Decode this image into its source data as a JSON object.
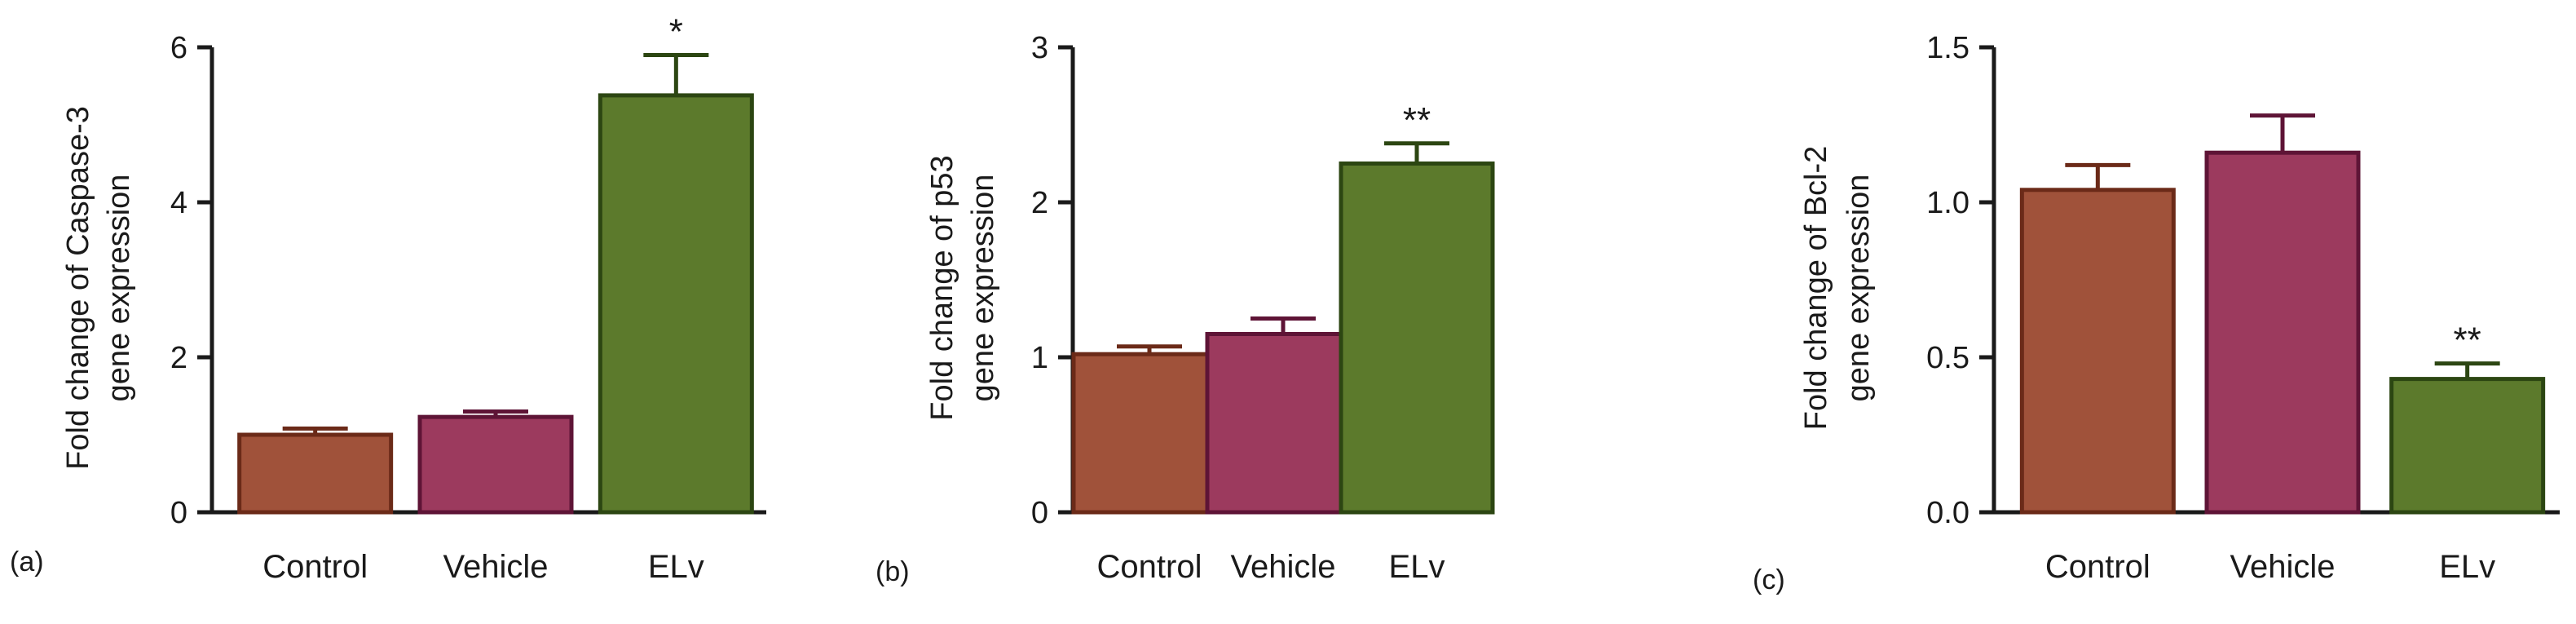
{
  "figure_labels": [
    "(a)",
    "(b)",
    "(c)"
  ],
  "colors": {
    "control_fill": "#A0523A",
    "control_stroke": "#6B2A18",
    "vehicle_fill": "#9C3A5E",
    "vehicle_stroke": "#5E1436",
    "elv_fill": "#5C7A2C",
    "elv_stroke": "#2C4612",
    "axis": "#1a1a1a"
  },
  "chart_data": [
    {
      "type": "bar",
      "panel": "(a)",
      "title": "",
      "ylabel_lines": [
        "Fold change of Caspase-3",
        "gene expression"
      ],
      "xlabel": "",
      "categories": [
        "Control",
        "Vehicle",
        "ELv"
      ],
      "values": [
        1.0,
        1.23,
        5.38
      ],
      "errors": [
        0.08,
        0.07,
        0.52
      ],
      "significance": [
        "",
        "",
        "*"
      ],
      "ylim": [
        0,
        6
      ],
      "yticks": [
        "0",
        "2",
        "4",
        "6"
      ],
      "ytick_values": [
        0,
        2,
        4,
        6
      ]
    },
    {
      "type": "bar",
      "panel": "(b)",
      "title": "",
      "ylabel_lines": [
        "Fold change of p53",
        "gene expression"
      ],
      "xlabel": "",
      "categories": [
        "Control",
        "Vehicle",
        "ELv"
      ],
      "values": [
        1.02,
        1.15,
        2.25
      ],
      "errors": [
        0.05,
        0.1,
        0.13
      ],
      "significance": [
        "",
        "",
        "**"
      ],
      "ylim": [
        0,
        3
      ],
      "yticks": [
        "0",
        "1",
        "2",
        "3"
      ],
      "ytick_values": [
        0,
        1,
        2,
        3
      ]
    },
    {
      "type": "bar",
      "panel": "(c)",
      "title": "",
      "ylabel_lines": [
        "Fold change of Bcl-2",
        "gene expression"
      ],
      "xlabel": "",
      "categories": [
        "Control",
        "Vehicle",
        "ELv"
      ],
      "values": [
        1.04,
        1.16,
        0.43
      ],
      "errors": [
        0.08,
        0.12,
        0.05
      ],
      "significance": [
        "",
        "",
        "**"
      ],
      "ylim": [
        0,
        1.5
      ],
      "yticks": [
        "0.0",
        "0.5",
        "1.0",
        "1.5"
      ],
      "ytick_values": [
        0,
        0.5,
        1.0,
        1.5
      ]
    }
  ]
}
